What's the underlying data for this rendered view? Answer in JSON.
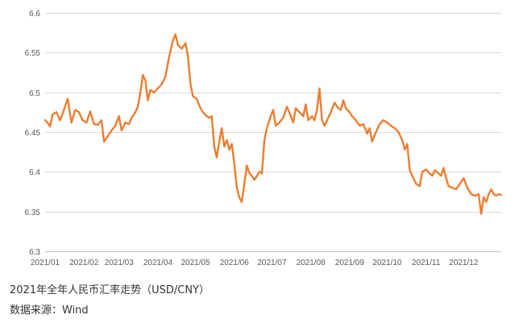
{
  "chart_data": {
    "type": "line",
    "title": "",
    "xlabel": "",
    "ylabel": "",
    "ylim": [
      6.3,
      6.6
    ],
    "yticks": [
      "6.3",
      "6.35",
      "6.4",
      "6.45",
      "6.5",
      "6.55",
      "6.6"
    ],
    "grid": true,
    "legend": "none",
    "x_categories": [
      "2021/01",
      "2021/02",
      "2021/03",
      "2021/04",
      "2021/05",
      "2021/06",
      "2021/07",
      "2021/08",
      "2021/09",
      "2021/10",
      "2021/11",
      "2021/12"
    ],
    "series": [
      {
        "color": "#ED7D31",
        "points": [
          [
            "2021-01-01",
            6.465
          ],
          [
            "2021-01-03",
            6.462
          ],
          [
            "2021-01-05",
            6.457
          ],
          [
            "2021-01-07",
            6.472
          ],
          [
            "2021-01-10",
            6.475
          ],
          [
            "2021-01-13",
            6.465
          ],
          [
            "2021-01-16",
            6.478
          ],
          [
            "2021-01-19",
            6.492
          ],
          [
            "2021-01-22",
            6.462
          ],
          [
            "2021-01-25",
            6.478
          ],
          [
            "2021-01-28",
            6.475
          ],
          [
            "2021-01-31",
            6.465
          ],
          [
            "2021-02-03",
            6.462
          ],
          [
            "2021-02-06",
            6.476
          ],
          [
            "2021-02-09",
            6.46
          ],
          [
            "2021-02-12",
            6.459
          ],
          [
            "2021-02-15",
            6.465
          ],
          [
            "2021-02-17",
            6.438
          ],
          [
            "2021-02-20",
            6.445
          ],
          [
            "2021-02-23",
            6.452
          ],
          [
            "2021-02-26",
            6.458
          ],
          [
            "2021-03-01",
            6.47
          ],
          [
            "2021-03-03",
            6.452
          ],
          [
            "2021-03-06",
            6.462
          ],
          [
            "2021-03-09",
            6.46
          ],
          [
            "2021-03-11",
            6.468
          ],
          [
            "2021-03-14",
            6.475
          ],
          [
            "2021-03-16",
            6.482
          ],
          [
            "2021-03-18",
            6.5
          ],
          [
            "2021-03-20",
            6.522
          ],
          [
            "2021-03-22",
            6.515
          ],
          [
            "2021-03-24",
            6.49
          ],
          [
            "2021-03-26",
            6.503
          ],
          [
            "2021-03-29",
            6.5
          ],
          [
            "2021-04-01",
            6.505
          ],
          [
            "2021-04-04",
            6.51
          ],
          [
            "2021-04-07",
            6.52
          ],
          [
            "2021-04-10",
            6.545
          ],
          [
            "2021-04-13",
            6.565
          ],
          [
            "2021-04-15",
            6.573
          ],
          [
            "2021-04-17",
            6.56
          ],
          [
            "2021-04-20",
            6.555
          ],
          [
            "2021-04-23",
            6.562
          ],
          [
            "2021-04-25",
            6.545
          ],
          [
            "2021-04-27",
            6.51
          ],
          [
            "2021-04-29",
            6.495
          ],
          [
            "2021-05-02",
            6.492
          ],
          [
            "2021-05-05",
            6.48
          ],
          [
            "2021-05-07",
            6.475
          ],
          [
            "2021-05-10",
            6.47
          ],
          [
            "2021-05-12",
            6.468
          ],
          [
            "2021-05-14",
            6.47
          ],
          [
            "2021-05-16",
            6.432
          ],
          [
            "2021-05-18",
            6.418
          ],
          [
            "2021-05-20",
            6.438
          ],
          [
            "2021-05-22",
            6.455
          ],
          [
            "2021-05-24",
            6.432
          ],
          [
            "2021-05-26",
            6.44
          ],
          [
            "2021-05-28",
            6.428
          ],
          [
            "2021-05-30",
            6.435
          ],
          [
            "2021-06-01",
            6.41
          ],
          [
            "2021-06-03",
            6.38
          ],
          [
            "2021-06-05",
            6.368
          ],
          [
            "2021-06-07",
            6.362
          ],
          [
            "2021-06-09",
            6.385
          ],
          [
            "2021-06-11",
            6.408
          ],
          [
            "2021-06-13",
            6.398
          ],
          [
            "2021-06-15",
            6.395
          ],
          [
            "2021-06-17",
            6.39
          ],
          [
            "2021-06-19",
            6.395
          ],
          [
            "2021-06-21",
            6.4
          ],
          [
            "2021-06-23",
            6.398
          ],
          [
            "2021-06-25",
            6.44
          ],
          [
            "2021-06-27",
            6.455
          ],
          [
            "2021-06-30",
            6.47
          ],
          [
            "2021-07-02",
            6.478
          ],
          [
            "2021-07-04",
            6.458
          ],
          [
            "2021-07-07",
            6.462
          ],
          [
            "2021-07-10",
            6.468
          ],
          [
            "2021-07-13",
            6.482
          ],
          [
            "2021-07-16",
            6.47
          ],
          [
            "2021-07-18",
            6.462
          ],
          [
            "2021-07-20",
            6.48
          ],
          [
            "2021-07-23",
            6.475
          ],
          [
            "2021-07-26",
            6.47
          ],
          [
            "2021-07-28",
            6.485
          ],
          [
            "2021-07-30",
            6.465
          ],
          [
            "2021-08-02",
            6.47
          ],
          [
            "2021-08-04",
            6.465
          ],
          [
            "2021-08-06",
            6.478
          ],
          [
            "2021-08-08",
            6.505
          ],
          [
            "2021-08-10",
            6.465
          ],
          [
            "2021-08-12",
            6.458
          ],
          [
            "2021-08-14",
            6.465
          ],
          [
            "2021-08-17",
            6.475
          ],
          [
            "2021-08-20",
            6.487
          ],
          [
            "2021-08-23",
            6.48
          ],
          [
            "2021-08-25",
            6.478
          ],
          [
            "2021-08-27",
            6.49
          ],
          [
            "2021-08-29",
            6.48
          ],
          [
            "2021-09-01",
            6.475
          ],
          [
            "2021-09-03",
            6.47
          ],
          [
            "2021-09-06",
            6.465
          ],
          [
            "2021-09-09",
            6.458
          ],
          [
            "2021-09-12",
            6.46
          ],
          [
            "2021-09-15",
            6.448
          ],
          [
            "2021-09-17",
            6.455
          ],
          [
            "2021-09-19",
            6.438
          ],
          [
            "2021-09-22",
            6.45
          ],
          [
            "2021-09-25",
            6.46
          ],
          [
            "2021-09-28",
            6.465
          ],
          [
            "2021-10-01",
            6.462
          ],
          [
            "2021-10-04",
            6.458
          ],
          [
            "2021-10-07",
            6.455
          ],
          [
            "2021-10-10",
            6.45
          ],
          [
            "2021-10-13",
            6.44
          ],
          [
            "2021-10-15",
            6.428
          ],
          [
            "2021-10-17",
            6.435
          ],
          [
            "2021-10-19",
            6.402
          ],
          [
            "2021-10-21",
            6.395
          ],
          [
            "2021-10-24",
            6.385
          ],
          [
            "2021-10-27",
            6.382
          ],
          [
            "2021-10-29",
            6.4
          ],
          [
            "2021-11-01",
            6.403
          ],
          [
            "2021-11-04",
            6.398
          ],
          [
            "2021-11-06",
            6.395
          ],
          [
            "2021-11-08",
            6.402
          ],
          [
            "2021-11-11",
            6.398
          ],
          [
            "2021-11-13",
            6.395
          ],
          [
            "2021-11-15",
            6.405
          ],
          [
            "2021-11-17",
            6.392
          ],
          [
            "2021-11-19",
            6.382
          ],
          [
            "2021-11-22",
            6.38
          ],
          [
            "2021-11-25",
            6.378
          ],
          [
            "2021-11-28",
            6.385
          ],
          [
            "2021-12-01",
            6.392
          ],
          [
            "2021-12-04",
            6.38
          ],
          [
            "2021-12-07",
            6.372
          ],
          [
            "2021-12-10",
            6.37
          ],
          [
            "2021-12-13",
            6.372
          ],
          [
            "2021-12-15",
            6.347
          ],
          [
            "2021-12-17",
            6.368
          ],
          [
            "2021-12-19",
            6.362
          ],
          [
            "2021-12-21",
            6.372
          ],
          [
            "2021-12-23",
            6.378
          ],
          [
            "2021-12-25",
            6.372
          ],
          [
            "2021-12-27",
            6.37
          ],
          [
            "2021-12-29",
            6.372
          ],
          [
            "2021-12-31",
            6.371
          ]
        ]
      }
    ]
  },
  "caption": {
    "title": "2021年全年人民币汇率走势（USD/CNY）",
    "source": "数据来源：Wind"
  }
}
